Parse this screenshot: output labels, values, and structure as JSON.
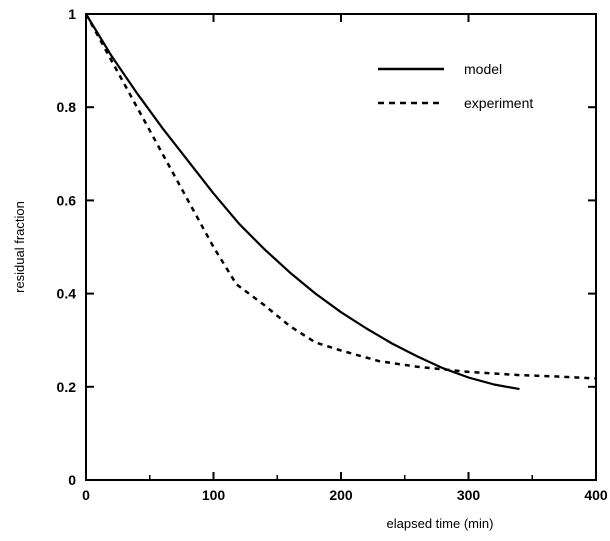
{
  "chart_data": {
    "type": "line",
    "title": "",
    "xlabel": "elapsed time (min)",
    "ylabel": "residual fraction",
    "xlim": [
      0,
      400
    ],
    "ylim": [
      0,
      1
    ],
    "xticks": [
      0,
      100,
      200,
      300,
      400
    ],
    "yticks": [
      0,
      0.2,
      0.4,
      0.6,
      0.8,
      1
    ],
    "grid": false,
    "legend_position": "top-right",
    "series": [
      {
        "name": "model",
        "style": "solid",
        "points": [
          [
            0,
            1.0
          ],
          [
            20,
            0.91
          ],
          [
            40,
            0.83
          ],
          [
            60,
            0.755
          ],
          [
            80,
            0.685
          ],
          [
            100,
            0.615
          ],
          [
            120,
            0.55
          ],
          [
            140,
            0.495
          ],
          [
            160,
            0.445
          ],
          [
            180,
            0.4
          ],
          [
            200,
            0.36
          ],
          [
            220,
            0.325
          ],
          [
            240,
            0.293
          ],
          [
            260,
            0.265
          ],
          [
            280,
            0.24
          ],
          [
            300,
            0.22
          ],
          [
            320,
            0.205
          ],
          [
            340,
            0.195
          ]
        ]
      },
      {
        "name": "experiment",
        "style": "dashed",
        "points": [
          [
            0,
            1.0
          ],
          [
            20,
            0.9
          ],
          [
            40,
            0.8
          ],
          [
            60,
            0.7
          ],
          [
            80,
            0.6
          ],
          [
            100,
            0.5
          ],
          [
            118,
            0.42
          ],
          [
            140,
            0.375
          ],
          [
            160,
            0.33
          ],
          [
            180,
            0.295
          ],
          [
            200,
            0.278
          ],
          [
            230,
            0.255
          ],
          [
            260,
            0.243
          ],
          [
            300,
            0.232
          ],
          [
            340,
            0.225
          ],
          [
            370,
            0.222
          ],
          [
            400,
            0.218
          ]
        ]
      }
    ]
  }
}
